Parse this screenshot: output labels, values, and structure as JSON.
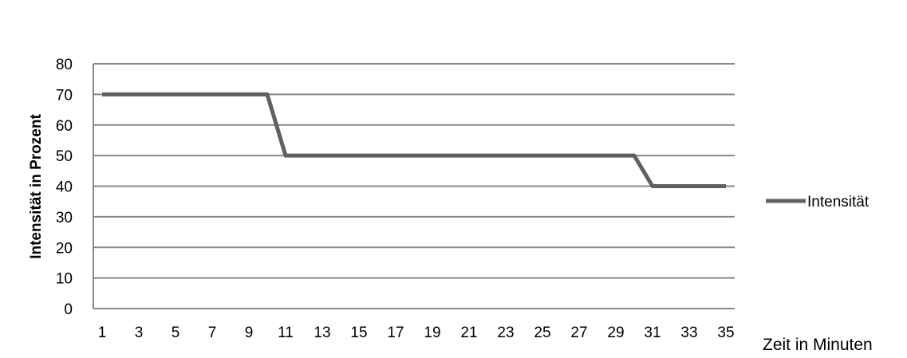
{
  "chart_data": {
    "type": "line",
    "title": "",
    "xlabel": "Zeit in Minuten",
    "ylabel": "Intensität in Prozent",
    "ylim": [
      0,
      80
    ],
    "yticks": [
      0,
      10,
      20,
      30,
      40,
      50,
      60,
      70,
      80
    ],
    "x": [
      1,
      2,
      3,
      4,
      5,
      6,
      7,
      8,
      9,
      10,
      11,
      12,
      13,
      14,
      15,
      16,
      17,
      18,
      19,
      20,
      21,
      22,
      23,
      24,
      25,
      26,
      27,
      28,
      29,
      30,
      31,
      32,
      33,
      34,
      35
    ],
    "xtick_labels": [
      "1",
      "3",
      "5",
      "7",
      "9",
      "11",
      "13",
      "15",
      "17",
      "19",
      "21",
      "23",
      "25",
      "27",
      "29",
      "31",
      "33",
      "35"
    ],
    "grid": true,
    "legend_position": "right",
    "series": [
      {
        "name": "Intensität",
        "color": "#606060",
        "values": [
          70,
          70,
          70,
          70,
          70,
          70,
          70,
          70,
          70,
          70,
          50,
          50,
          50,
          50,
          50,
          50,
          50,
          50,
          50,
          50,
          50,
          50,
          50,
          50,
          50,
          50,
          50,
          50,
          50,
          50,
          40,
          40,
          40,
          40,
          40
        ]
      }
    ]
  }
}
